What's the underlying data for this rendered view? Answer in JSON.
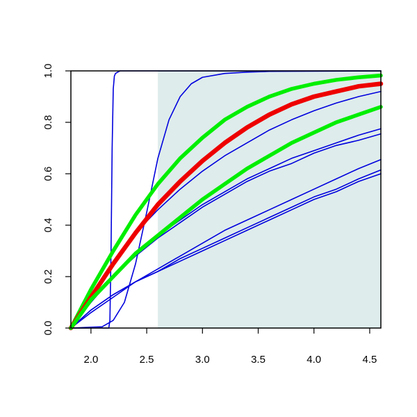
{
  "chart_data": {
    "type": "line",
    "title": "",
    "xlabel": "",
    "ylabel": "",
    "xlim": [
      1.82,
      4.6
    ],
    "ylim": [
      0,
      1
    ],
    "x_ticks": [
      "2.0",
      "2.5",
      "3.0",
      "3.5",
      "4.0",
      "4.5"
    ],
    "y_ticks": [
      "0.0",
      "0.2",
      "0.4",
      "0.6",
      "0.8",
      "1.0"
    ],
    "shaded_region": {
      "x_from": 2.6,
      "x_to": 4.6,
      "color": "#deecec"
    },
    "grid": false,
    "legend": "none",
    "series": [
      {
        "color": "#0000dd",
        "width": 1.6,
        "x": [
          1.82,
          2.16,
          2.17,
          2.18,
          2.19,
          2.2,
          2.21,
          2.22,
          2.24,
          2.26,
          2.3,
          2.5,
          3.0,
          4.6
        ],
        "y": [
          0,
          0,
          0.03,
          0.3,
          0.7,
          0.93,
          0.98,
          0.99,
          0.995,
          1.0,
          1.0,
          1.0,
          1.0,
          1.0
        ]
      },
      {
        "color": "#0000dd",
        "width": 1.6,
        "x": [
          1.82,
          2.1,
          2.2,
          2.3,
          2.4,
          2.5,
          2.6,
          2.7,
          2.8,
          2.9,
          3.0,
          3.2,
          3.4,
          3.6,
          4.6
        ],
        "y": [
          0,
          0.005,
          0.03,
          0.1,
          0.25,
          0.45,
          0.66,
          0.81,
          0.9,
          0.95,
          0.975,
          0.99,
          0.995,
          0.998,
          1.0
        ]
      },
      {
        "color": "#0000dd",
        "width": 1.6,
        "x": [
          1.82,
          2.0,
          2.2,
          2.4,
          2.6,
          2.8,
          3.0,
          3.2,
          3.4,
          3.6,
          3.8,
          4.0,
          4.2,
          4.4,
          4.6
        ],
        "y": [
          0,
          0.13,
          0.26,
          0.37,
          0.46,
          0.54,
          0.61,
          0.67,
          0.72,
          0.77,
          0.81,
          0.845,
          0.875,
          0.9,
          0.92
        ]
      },
      {
        "color": "#0000dd",
        "width": 1.6,
        "x": [
          1.82,
          2.0,
          2.2,
          2.4,
          2.6,
          2.8,
          3.0,
          3.2,
          3.4,
          3.6,
          3.8,
          4.0,
          4.2,
          4.4,
          4.6
        ],
        "y": [
          0,
          0.1,
          0.2,
          0.29,
          0.36,
          0.42,
          0.48,
          0.53,
          0.58,
          0.62,
          0.66,
          0.69,
          0.72,
          0.75,
          0.775
        ]
      },
      {
        "color": "#0000dd",
        "width": 1.6,
        "x": [
          1.82,
          2.0,
          2.2,
          2.4,
          2.6,
          2.8,
          3.0,
          3.2,
          3.4,
          3.6,
          3.8,
          4.0,
          4.2,
          4.4,
          4.6
        ],
        "y": [
          0,
          0.1,
          0.2,
          0.28,
          0.35,
          0.41,
          0.47,
          0.52,
          0.57,
          0.61,
          0.64,
          0.68,
          0.71,
          0.73,
          0.755
        ]
      },
      {
        "color": "#0000dd",
        "width": 1.6,
        "x": [
          1.82,
          2.0,
          2.2,
          2.4,
          2.6,
          2.8,
          3.0,
          3.2,
          3.4,
          3.6,
          3.8,
          4.0,
          4.2,
          4.4,
          4.6
        ],
        "y": [
          0,
          0.06,
          0.12,
          0.18,
          0.23,
          0.28,
          0.33,
          0.38,
          0.42,
          0.46,
          0.5,
          0.54,
          0.58,
          0.62,
          0.655
        ]
      },
      {
        "color": "#0000dd",
        "width": 1.6,
        "x": [
          1.82,
          2.0,
          2.2,
          2.4,
          2.6,
          2.8,
          3.0,
          3.2,
          3.4,
          3.6,
          3.8,
          4.0,
          4.2,
          4.4,
          4.6
        ],
        "y": [
          0,
          0.07,
          0.13,
          0.18,
          0.22,
          0.27,
          0.31,
          0.35,
          0.39,
          0.43,
          0.47,
          0.51,
          0.54,
          0.58,
          0.615
        ]
      },
      {
        "color": "#0000dd",
        "width": 1.6,
        "x": [
          1.82,
          2.0,
          2.2,
          2.4,
          2.6,
          2.8,
          3.0,
          3.2,
          3.4,
          3.6,
          3.8,
          4.0,
          4.2,
          4.4,
          4.6
        ],
        "y": [
          0,
          0.07,
          0.13,
          0.18,
          0.22,
          0.26,
          0.3,
          0.34,
          0.38,
          0.42,
          0.46,
          0.5,
          0.53,
          0.57,
          0.6
        ]
      },
      {
        "color": "#00ee00",
        "width": 5.5,
        "x": [
          1.82,
          2.0,
          2.2,
          2.4,
          2.6,
          2.8,
          3.0,
          3.2,
          3.4,
          3.6,
          3.8,
          4.0,
          4.2,
          4.4,
          4.6
        ],
        "y": [
          0,
          0.15,
          0.3,
          0.44,
          0.56,
          0.66,
          0.74,
          0.81,
          0.86,
          0.9,
          0.93,
          0.95,
          0.965,
          0.975,
          0.982
        ]
      },
      {
        "color": "#ee0000",
        "width": 6.5,
        "x": [
          1.82,
          2.0,
          2.2,
          2.4,
          2.6,
          2.8,
          3.0,
          3.2,
          3.4,
          3.6,
          3.8,
          4.0,
          4.2,
          4.4,
          4.6
        ],
        "y": [
          0,
          0.12,
          0.25,
          0.37,
          0.48,
          0.57,
          0.65,
          0.72,
          0.78,
          0.83,
          0.87,
          0.9,
          0.92,
          0.94,
          0.95
        ]
      },
      {
        "color": "#00ee00",
        "width": 5.5,
        "x": [
          1.82,
          2.0,
          2.2,
          2.4,
          2.6,
          2.8,
          3.0,
          3.2,
          3.4,
          3.6,
          3.8,
          4.0,
          4.2,
          4.4,
          4.6
        ],
        "y": [
          0,
          0.11,
          0.2,
          0.29,
          0.36,
          0.43,
          0.5,
          0.56,
          0.62,
          0.67,
          0.72,
          0.76,
          0.8,
          0.83,
          0.86
        ]
      }
    ]
  }
}
